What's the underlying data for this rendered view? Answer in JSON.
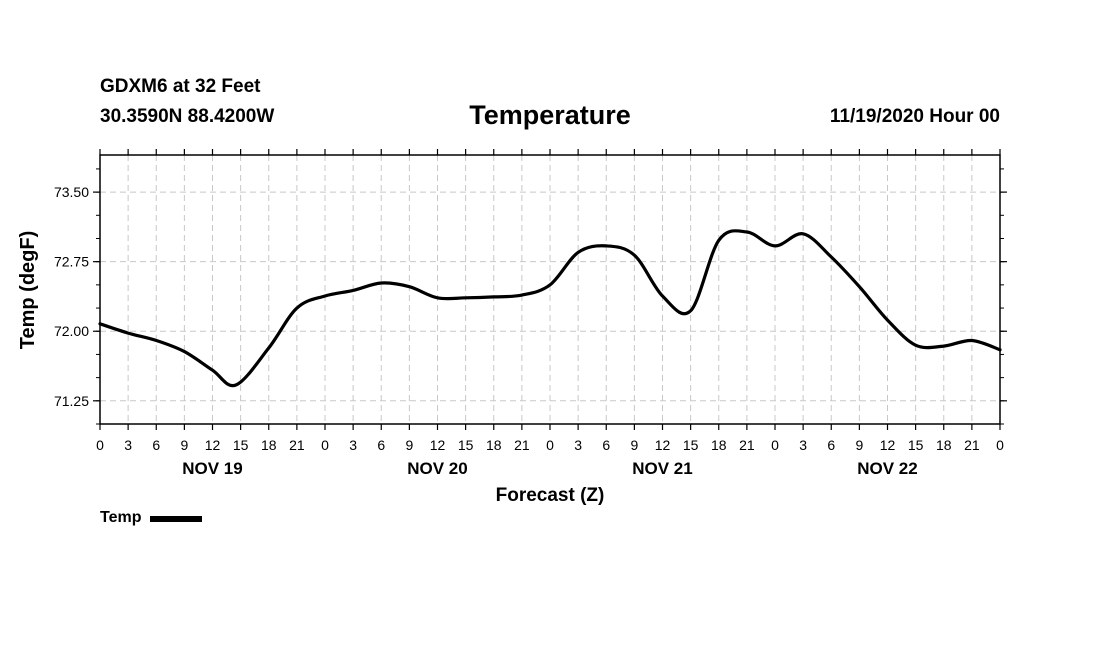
{
  "header": {
    "station": "GDXM6 at 32 Feet",
    "coords": "30.3590N 88.4200W",
    "title": "Temperature",
    "run": "11/19/2020 Hour 00"
  },
  "chart_data": {
    "type": "line",
    "title": "Temperature",
    "xlabel": "Forecast (Z)",
    "ylabel": "Temp (degF)",
    "xlim_hours": [
      0,
      96
    ],
    "ylim": [
      71.0,
      73.9
    ],
    "yticks": [
      71.25,
      72.0,
      72.75,
      73.5
    ],
    "ytick_labels": [
      "71.25",
      "72.00",
      "72.75",
      "73.50"
    ],
    "grid": true,
    "xticks_hours": [
      0,
      3,
      6,
      9,
      12,
      15,
      18,
      21,
      24,
      27,
      30,
      33,
      36,
      39,
      42,
      45,
      48,
      51,
      54,
      57,
      60,
      63,
      66,
      69,
      72,
      75,
      78,
      81,
      84,
      87,
      90,
      93,
      96
    ],
    "xtick_labels": [
      "0",
      "3",
      "6",
      "9",
      "12",
      "15",
      "18",
      "21",
      "0",
      "3",
      "6",
      "9",
      "12",
      "15",
      "18",
      "21",
      "0",
      "3",
      "6",
      "9",
      "12",
      "15",
      "18",
      "21",
      "0",
      "3",
      "6",
      "9",
      "12",
      "15",
      "18",
      "21",
      "0"
    ],
    "day_labels": [
      {
        "hour": 12,
        "label": "NOV 19"
      },
      {
        "hour": 36,
        "label": "NOV 20"
      },
      {
        "hour": 60,
        "label": "NOV 21"
      },
      {
        "hour": 84,
        "label": "NOV 22"
      }
    ],
    "series": [
      {
        "name": "Temp",
        "color": "#000000",
        "x": [
          0,
          3,
          6,
          9,
          12,
          14.5,
          18,
          21,
          24,
          27,
          30,
          33,
          36,
          39,
          42,
          45,
          48,
          51,
          54,
          57,
          60,
          63,
          66,
          69,
          72,
          75,
          78,
          81,
          84,
          87,
          90,
          93,
          96
        ],
        "values": [
          72.08,
          71.98,
          71.9,
          71.78,
          71.58,
          71.42,
          71.82,
          72.25,
          72.38,
          72.44,
          72.52,
          72.48,
          72.36,
          72.36,
          72.37,
          72.39,
          72.5,
          72.85,
          72.92,
          72.82,
          72.38,
          72.22,
          72.98,
          73.07,
          72.92,
          73.05,
          72.8,
          72.48,
          72.12,
          71.85,
          71.84,
          71.9,
          71.8
        ]
      }
    ],
    "legend": [
      {
        "label": "Temp",
        "color": "#000000"
      }
    ],
    "legend_position": "bottom-left"
  }
}
